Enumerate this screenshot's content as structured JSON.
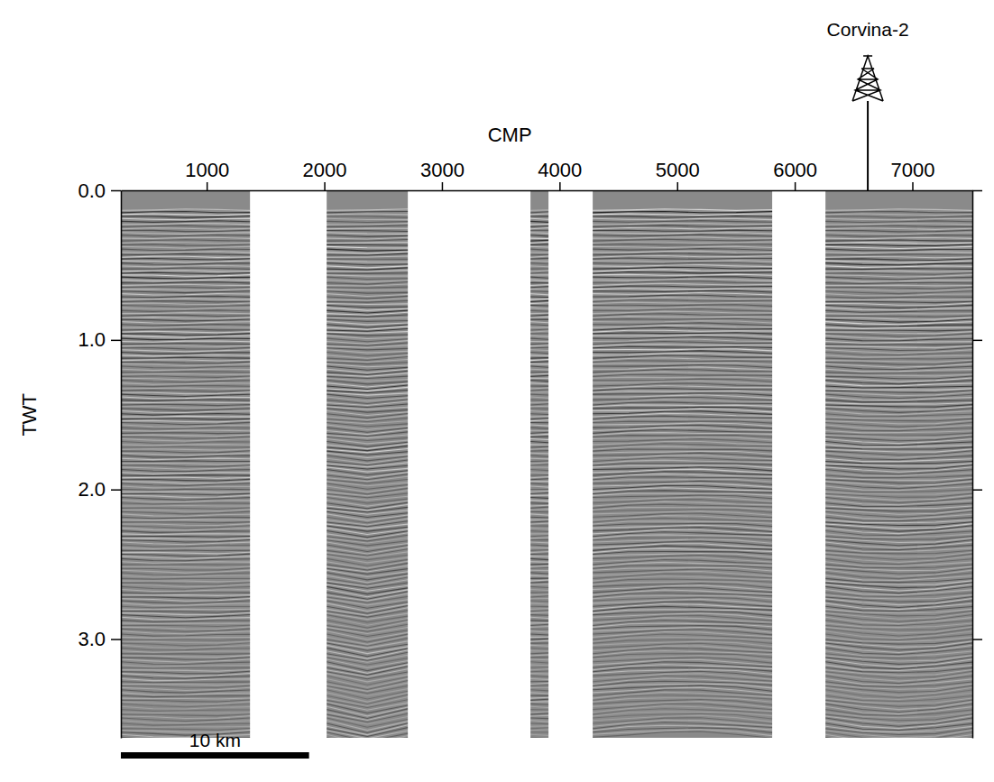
{
  "chart_data": {
    "type": "seismic_section",
    "xlabel": "CMP",
    "ylabel": "TWT",
    "xlim": [
      270,
      7510
    ],
    "ylim": [
      0,
      3.66
    ],
    "xticks": [
      1000,
      2000,
      3000,
      4000,
      5000,
      6000,
      7000
    ],
    "yticks": [
      {
        "value": 0,
        "label": "0.0"
      },
      {
        "value": 1,
        "label": "1.0"
      },
      {
        "value": 2,
        "label": "2.0"
      },
      {
        "value": 3,
        "label": "3.0"
      }
    ],
    "panels": [
      {
        "cmp_start": 270,
        "cmp_end": 1368
      },
      {
        "cmp_start": 2020,
        "cmp_end": 2710
      },
      {
        "cmp_start": 3753,
        "cmp_end": 3906
      },
      {
        "cmp_start": 4282,
        "cmp_end": 5808
      },
      {
        "cmp_start": 6261,
        "cmp_end": 7510
      }
    ],
    "data_start_twt": 0.13,
    "well": {
      "name": "Corvina-2",
      "cmp": 6621
    },
    "scale_bar": {
      "label": "10 km",
      "cmp_length": 1600
    }
  }
}
